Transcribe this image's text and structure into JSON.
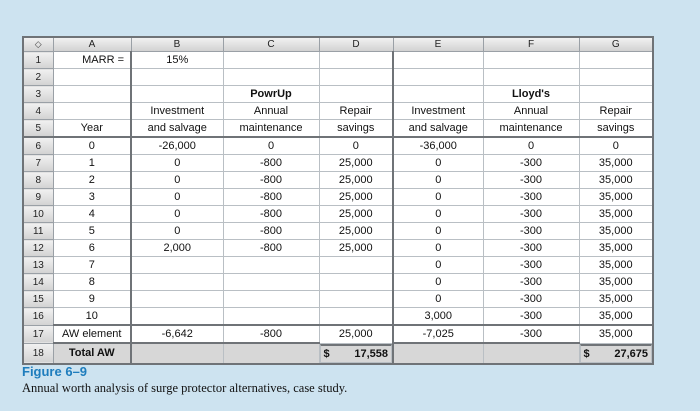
{
  "colors": {
    "page_background": "#cde3f0",
    "figure_label_blue": "#1e7dbd",
    "total_row_gray": "#d7d7d7",
    "header_gray": "#d2d2d2"
  },
  "spreadsheet": {
    "corner_glyph": "◇",
    "columns": [
      "A",
      "B",
      "C",
      "D",
      "E",
      "F",
      "G"
    ],
    "rows": [
      {
        "n": "1",
        "cells": [
          "MARR =",
          "15%",
          "",
          "",
          "",
          "",
          ""
        ]
      },
      {
        "n": "2",
        "cells": [
          "",
          "",
          "",
          "",
          "",
          "",
          ""
        ]
      },
      {
        "n": "3",
        "cells": [
          "",
          "",
          "PowrUp",
          "",
          "",
          "Lloyd's",
          ""
        ]
      },
      {
        "n": "4",
        "cells": [
          "",
          "Investment",
          "Annual",
          "Repair",
          "Investment",
          "Annual",
          "Repair"
        ]
      },
      {
        "n": "5",
        "cells": [
          "Year",
          "and salvage",
          "maintenance",
          "savings",
          "and salvage",
          "maintenance",
          "savings"
        ]
      },
      {
        "n": "6",
        "cells": [
          "0",
          "-26,000",
          "0",
          "0",
          "-36,000",
          "0",
          "0"
        ]
      },
      {
        "n": "7",
        "cells": [
          "1",
          "0",
          "-800",
          "25,000",
          "0",
          "-300",
          "35,000"
        ]
      },
      {
        "n": "8",
        "cells": [
          "2",
          "0",
          "-800",
          "25,000",
          "0",
          "-300",
          "35,000"
        ]
      },
      {
        "n": "9",
        "cells": [
          "3",
          "0",
          "-800",
          "25,000",
          "0",
          "-300",
          "35,000"
        ]
      },
      {
        "n": "10",
        "cells": [
          "4",
          "0",
          "-800",
          "25,000",
          "0",
          "-300",
          "35,000"
        ]
      },
      {
        "n": "11",
        "cells": [
          "5",
          "0",
          "-800",
          "25,000",
          "0",
          "-300",
          "35,000"
        ]
      },
      {
        "n": "12",
        "cells": [
          "6",
          "2,000",
          "-800",
          "25,000",
          "0",
          "-300",
          "35,000"
        ]
      },
      {
        "n": "13",
        "cells": [
          "7",
          "",
          "",
          "",
          "0",
          "-300",
          "35,000"
        ]
      },
      {
        "n": "14",
        "cells": [
          "8",
          "",
          "",
          "",
          "0",
          "-300",
          "35,000"
        ]
      },
      {
        "n": "15",
        "cells": [
          "9",
          "",
          "",
          "",
          "0",
          "-300",
          "35,000"
        ]
      },
      {
        "n": "16",
        "cells": [
          "10",
          "",
          "",
          "",
          "3,000",
          "-300",
          "35,000"
        ]
      },
      {
        "n": "17",
        "cells": [
          "AW element",
          "-6,642",
          "-800",
          "25,000",
          "-7,025",
          "-300",
          "35,000"
        ]
      },
      {
        "n": "18",
        "cells": [
          "Total AW",
          "",
          "",
          "$ 17,558",
          "",
          "",
          "$ 27,675"
        ]
      }
    ]
  },
  "caption": {
    "label": "Figure 6–9",
    "text": "Annual worth analysis of surge protector alternatives, case study."
  }
}
